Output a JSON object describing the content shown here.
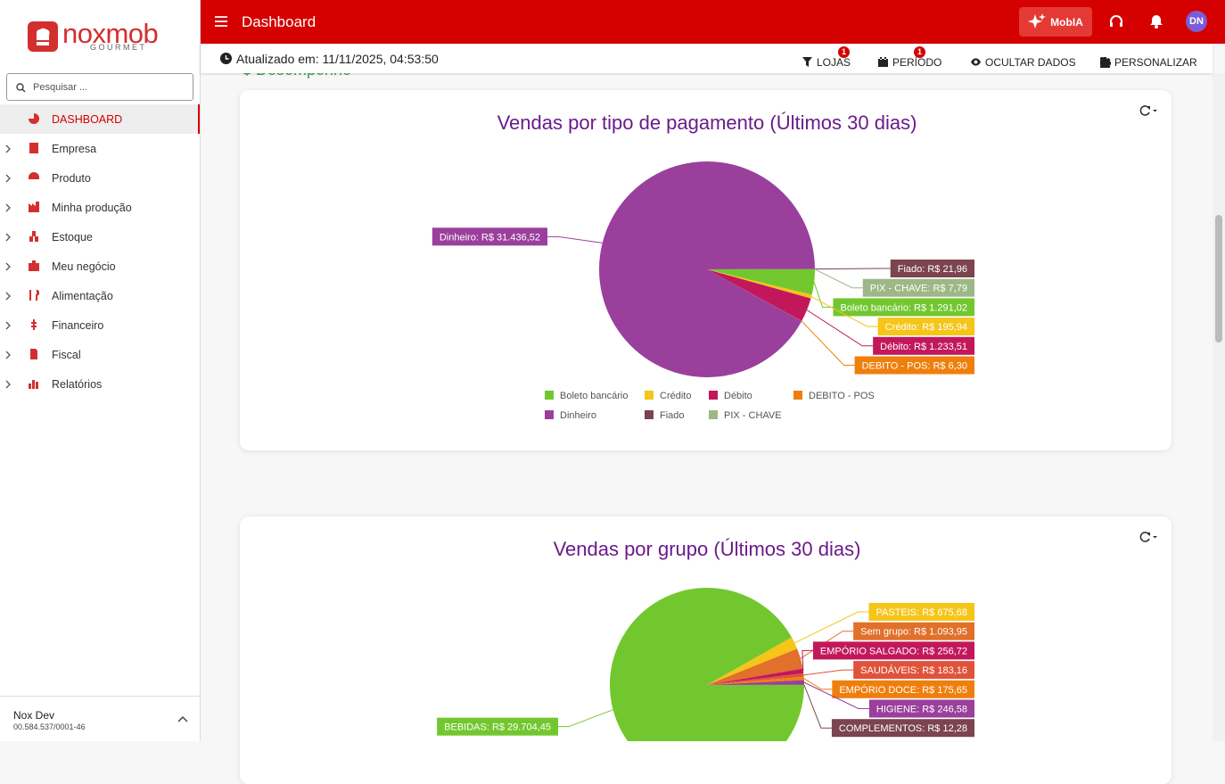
{
  "sidebar": {
    "logo": "noxmob",
    "logo_sub": "GOURMET",
    "search_placeholder": "Pesquisar ...",
    "menu": [
      "DASHBOARD",
      "Empresa",
      "Produto",
      "Minha produção",
      "Estoque",
      "Meu negócio",
      "Alimentação",
      "Financeiro",
      "Fiscal",
      "Relatórios"
    ],
    "user": {
      "name": "Nox Dev",
      "document": "00.584.537/0001-46"
    }
  },
  "topbar": {
    "title": "Dashboard",
    "assistant": "MobIA",
    "avatar": "DN"
  },
  "toolbar": {
    "updated": "Atualizado em: 11/11/2025, 04:53:50",
    "filters": [
      {
        "label": "LOJAS",
        "badge": 1
      },
      {
        "label": "PERÍODO",
        "badge": 1
      },
      {
        "label": "OCULTAR DADOS"
      },
      {
        "label": "PERSONALIZAR"
      }
    ]
  },
  "section": "$ Desempenho",
  "chart_data": [
    {
      "type": "pie",
      "title": "Vendas por tipo de pagamento (Últimos 30 dias)",
      "categories": [
        "Boleto bancário",
        "Crédito",
        "Débito",
        "DEBITO - POS",
        "Dinheiro",
        "Fiado",
        "PIX - CHAVE"
      ],
      "values": [
        1291.02,
        195.94,
        1233.51,
        6.3,
        31436.52,
        21.96,
        7.79
      ],
      "value_labels": [
        "Boleto bancário: R$ 1.291,02",
        "Crédito: R$ 195,94",
        "Débito: R$ 1.233,51",
        "DEBITO - POS: R$ 6,30",
        "Dinheiro: R$ 31.436,52",
        "Fiado: R$ 21,96",
        "PIX - CHAVE: R$ 7,79"
      ],
      "colors": [
        "#72c72f",
        "#f5c518",
        "#c2185b",
        "#ef7f0d",
        "#9a3f9c",
        "#7b444f",
        "#9db886"
      ],
      "legend": "bottom"
    },
    {
      "type": "pie",
      "title": "Vendas por grupo (Últimos 30 dias)",
      "categories": [
        "PASTEIS",
        "Sem grupo",
        "EMPÓRIO SALGADO",
        "SAUDÁVEIS",
        "EMPÓRIO DOCE",
        "HIGIENE",
        "COMPLEMENTOS",
        "BEBIDAS"
      ],
      "values": [
        675.68,
        1093.95,
        256.72,
        183.16,
        175.65,
        246.58,
        12.28,
        29704.45
      ],
      "value_labels": [
        "PASTEIS: R$ 675,68",
        "Sem grupo: R$ 1.093,95",
        "EMPÓRIO SALGADO: R$ 256,72",
        "SAUDÁVEIS: R$ 183,16",
        "EMPÓRIO DOCE: R$ 175,65",
        "HIGIENE: R$ 246,58",
        "COMPLEMENTOS: R$ 12,28",
        "BEBIDAS: R$ 29.704,45"
      ],
      "colors": [
        "#f5c518",
        "#e0702a",
        "#c2185b",
        "#e0533a",
        "#ef7f0d",
        "#9a3f9c",
        "#7b444f",
        "#72c72f"
      ]
    }
  ]
}
